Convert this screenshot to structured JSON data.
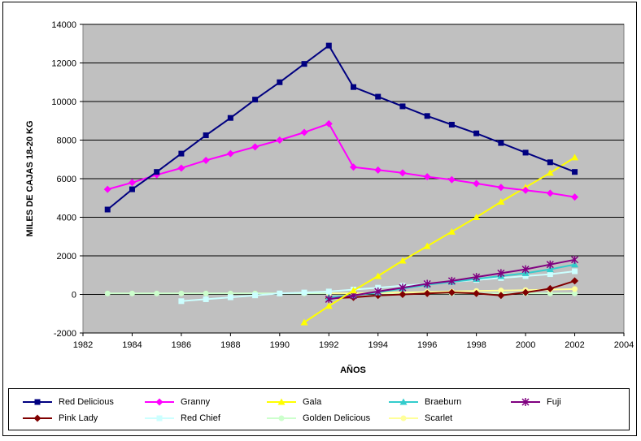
{
  "chart_data": {
    "type": "line",
    "title": "",
    "xlabel": "AÑOS",
    "ylabel": "MILES DE CAJAS 18-20 KG",
    "xlim": [
      1982,
      2004
    ],
    "ylim": [
      -2000,
      14000
    ],
    "xticks": [
      1982,
      1984,
      1986,
      1988,
      1990,
      1992,
      1994,
      1996,
      1998,
      2000,
      2002,
      2004
    ],
    "yticks": [
      -2000,
      0,
      2000,
      4000,
      6000,
      8000,
      10000,
      12000,
      14000
    ],
    "grid": true,
    "legend_position": "bottom",
    "series": [
      {
        "name": "Red Delicious",
        "color": "#000080",
        "marker": "square",
        "x": [
          1983,
          1984,
          1985,
          1986,
          1987,
          1988,
          1989,
          1990,
          1991,
          1992,
          1993,
          1994,
          1995,
          1996,
          1997,
          1998,
          1999,
          2000,
          2001,
          2002
        ],
        "y": [
          4400,
          5450,
          6350,
          7300,
          8250,
          9150,
          10100,
          11000,
          11950,
          12900,
          10750,
          10250,
          9750,
          9250,
          8800,
          8350,
          7850,
          7350,
          6850,
          6350
        ]
      },
      {
        "name": "Granny",
        "color": "#FF00FF",
        "marker": "diamond",
        "x": [
          1983,
          1984,
          1985,
          1986,
          1987,
          1988,
          1989,
          1990,
          1991,
          1992,
          1993,
          1994,
          1995,
          1996,
          1997,
          1998,
          1999,
          2000,
          2001,
          2002
        ],
        "y": [
          5450,
          5800,
          6200,
          6550,
          6950,
          7300,
          7650,
          8000,
          8400,
          8850,
          6600,
          6450,
          6300,
          6100,
          5950,
          5750,
          5550,
          5400,
          5250,
          5050
        ]
      },
      {
        "name": "Gala",
        "color": "#FFFF00",
        "marker": "triangle",
        "x": [
          1991,
          1992,
          1993,
          1994,
          1995,
          1996,
          1997,
          1998,
          1999,
          2000,
          2001,
          2002
        ],
        "y": [
          -1450,
          -600,
          200,
          950,
          1750,
          2500,
          3250,
          4000,
          4800,
          5550,
          6300,
          7100
        ]
      },
      {
        "name": "Braeburn",
        "color": "#33CCCC",
        "marker": "triangle",
        "x": [
          1992,
          1993,
          1994,
          1995,
          1996,
          1997,
          1998,
          1999,
          2000,
          2001,
          2002
        ],
        "y": [
          -150,
          -50,
          100,
          300,
          500,
          650,
          800,
          950,
          1100,
          1300,
          1550
        ]
      },
      {
        "name": "Fuji",
        "color": "#800080",
        "marker": "star",
        "x": [
          1992,
          1993,
          1994,
          1995,
          1996,
          1997,
          1998,
          1999,
          2000,
          2001,
          2002
        ],
        "y": [
          -250,
          -50,
          150,
          350,
          550,
          700,
          900,
          1100,
          1300,
          1550,
          1800
        ]
      },
      {
        "name": "Pink Lady",
        "color": "#800000",
        "marker": "diamond",
        "x": [
          1992,
          1993,
          1994,
          1995,
          1996,
          1997,
          1998,
          1999,
          2000,
          2001,
          2002
        ],
        "y": [
          -200,
          -150,
          -50,
          0,
          50,
          100,
          50,
          -50,
          100,
          300,
          700
        ]
      },
      {
        "name": "Red Chief",
        "color": "#CCFFFF",
        "marker": "square",
        "x": [
          1986,
          1987,
          1988,
          1989,
          1990,
          1991,
          1992,
          1993,
          1994,
          1995,
          1996,
          1997,
          1998,
          1999,
          2000,
          2001,
          2002
        ],
        "y": [
          -350,
          -250,
          -150,
          -50,
          50,
          100,
          150,
          250,
          350,
          450,
          550,
          650,
          750,
          850,
          950,
          1050,
          1200
        ]
      },
      {
        "name": "Golden Delicious",
        "color": "#CCFFCC",
        "marker": "circle",
        "x": [
          1983,
          1984,
          1985,
          1986,
          1987,
          1988,
          1989,
          1990,
          1991,
          1992,
          1993,
          1994,
          1995,
          1996,
          1997,
          1998,
          1999,
          2000,
          2001,
          2002
        ],
        "y": [
          50,
          50,
          50,
          50,
          50,
          50,
          50,
          50,
          50,
          50,
          50,
          50,
          50,
          50,
          50,
          50,
          50,
          50,
          50,
          50
        ]
      },
      {
        "name": "Scarlet",
        "color": "#FFFF99",
        "marker": "circle",
        "x": [
          1992,
          1993,
          1994,
          1995,
          1996,
          1997,
          1998,
          1999,
          2000,
          2001,
          2002
        ],
        "y": [
          50,
          50,
          80,
          100,
          120,
          150,
          180,
          200,
          220,
          250,
          280
        ]
      }
    ]
  }
}
